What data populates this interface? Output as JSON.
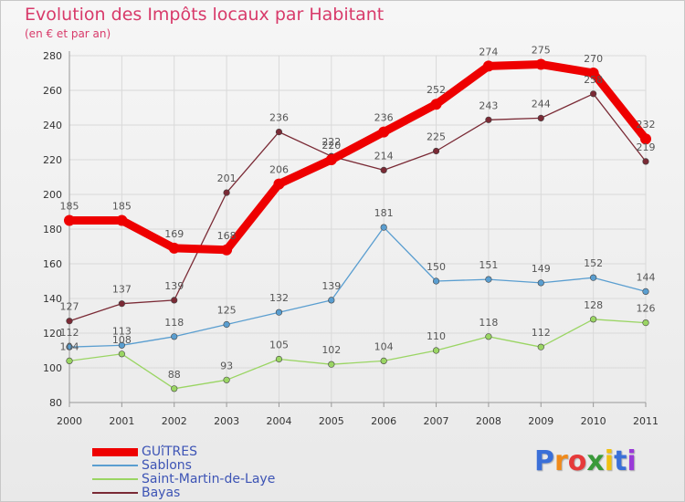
{
  "chart_data": {
    "type": "line",
    "title": "Evolution des Impôts locaux par Habitant",
    "subtitle": "(en € et par an)",
    "x": [
      "2000",
      "2001",
      "2002",
      "2003",
      "2004",
      "2005",
      "2006",
      "2007",
      "2008",
      "2009",
      "2010",
      "2011"
    ],
    "ylim": [
      80,
      280
    ],
    "yticks": [
      80,
      100,
      120,
      140,
      160,
      180,
      200,
      220,
      240,
      260,
      280
    ],
    "grid": true,
    "legend_placement": "bottom-left",
    "series": [
      {
        "name": "GUîTRES",
        "color": "#ee0000",
        "values": [
          185,
          185,
          169,
          168,
          206,
          220,
          236,
          252,
          274,
          275,
          270,
          232
        ]
      },
      {
        "name": "Sablons",
        "color": "#5a9ed0",
        "values": [
          112,
          113,
          118,
          125,
          132,
          139,
          181,
          150,
          151,
          149,
          152,
          144
        ]
      },
      {
        "name": "Saint-Martin-de-Laye",
        "color": "#9ad563",
        "values": [
          104,
          108,
          88,
          93,
          105,
          102,
          104,
          110,
          118,
          112,
          128,
          126
        ]
      },
      {
        "name": "Bayas",
        "color": "#7a2a35",
        "values": [
          127,
          137,
          139,
          201,
          236,
          222,
          214,
          225,
          243,
          244,
          258,
          219
        ]
      }
    ]
  },
  "brand": {
    "letters": [
      "P",
      "r",
      "o",
      "x",
      "i",
      "t",
      "i"
    ],
    "colors": [
      "#3a6fd8",
      "#f08a1a",
      "#e63a3a",
      "#3a9a3a",
      "#f0c010",
      "#3a6fd8",
      "#9a3ad8"
    ]
  }
}
